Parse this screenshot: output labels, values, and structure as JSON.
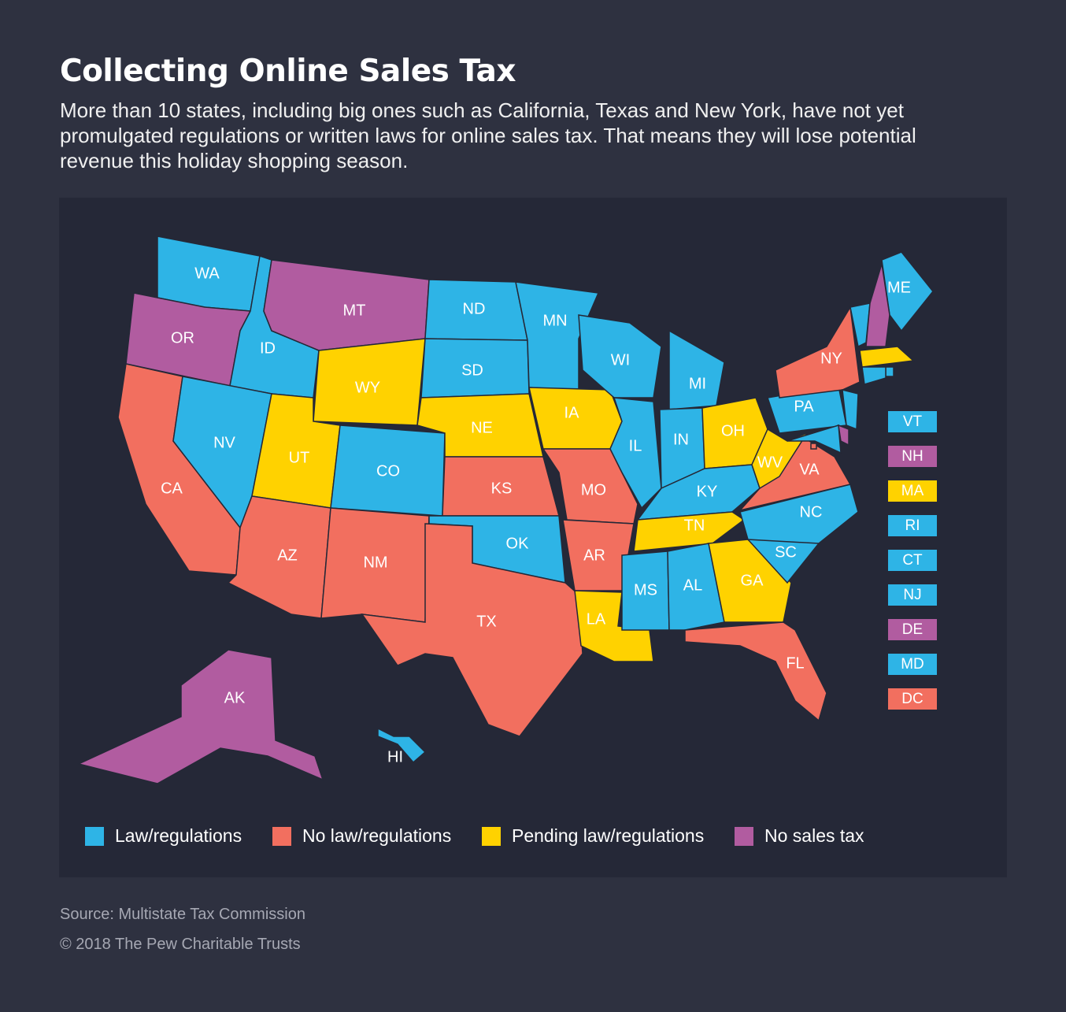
{
  "header": {
    "title": "Collecting Online Sales Tax",
    "subtitle": "More than 10 states, including big ones such as California, Texas and New York, have not yet promulgated regulations or written laws for online sales tax. That means they will lose potential revenue this holiday shopping season."
  },
  "legend": [
    {
      "label": "Law/regulations",
      "color": "#2eb4e6"
    },
    {
      "label": "No law/regulations",
      "color": "#f26f5f"
    },
    {
      "label": "Pending law/regulations",
      "color": "#ffd200"
    },
    {
      "label": "No sales tax",
      "color": "#b15ca0"
    }
  ],
  "states": [
    {
      "label": "WA",
      "color": "#2eb4e6"
    },
    {
      "label": "OR",
      "color": "#b15ca0"
    },
    {
      "label": "CA",
      "color": "#f26f5f"
    },
    {
      "label": "ID",
      "color": "#2eb4e6"
    },
    {
      "label": "NV",
      "color": "#2eb4e6"
    },
    {
      "label": "MT",
      "color": "#b15ca0"
    },
    {
      "label": "WY",
      "color": "#ffd200"
    },
    {
      "label": "UT",
      "color": "#ffd200"
    },
    {
      "label": "CO",
      "color": "#2eb4e6"
    },
    {
      "label": "AZ",
      "color": "#f26f5f"
    },
    {
      "label": "NM",
      "color": "#f26f5f"
    },
    {
      "label": "ND",
      "color": "#2eb4e6"
    },
    {
      "label": "SD",
      "color": "#2eb4e6"
    },
    {
      "label": "NE",
      "color": "#ffd200"
    },
    {
      "label": "KS",
      "color": "#f26f5f"
    },
    {
      "label": "OK",
      "color": "#2eb4e6"
    },
    {
      "label": "TX",
      "color": "#f26f5f"
    },
    {
      "label": "MN",
      "color": "#2eb4e6"
    },
    {
      "label": "IA",
      "color": "#ffd200"
    },
    {
      "label": "MO",
      "color": "#f26f5f"
    },
    {
      "label": "AR",
      "color": "#f26f5f"
    },
    {
      "label": "LA",
      "color": "#ffd200"
    },
    {
      "label": "WI",
      "color": "#2eb4e6"
    },
    {
      "label": "IL",
      "color": "#2eb4e6"
    },
    {
      "label": "MI",
      "color": "#2eb4e6"
    },
    {
      "label": "IN",
      "color": "#2eb4e6"
    },
    {
      "label": "OH",
      "color": "#ffd200"
    },
    {
      "label": "KY",
      "color": "#2eb4e6"
    },
    {
      "label": "TN",
      "color": "#ffd200"
    },
    {
      "label": "MS",
      "color": "#2eb4e6"
    },
    {
      "label": "AL",
      "color": "#2eb4e6"
    },
    {
      "label": "GA",
      "color": "#ffd200"
    },
    {
      "label": "FL",
      "color": "#f26f5f"
    },
    {
      "label": "SC",
      "color": "#2eb4e6"
    },
    {
      "label": "NC",
      "color": "#2eb4e6"
    },
    {
      "label": "VA",
      "color": "#f26f5f"
    },
    {
      "label": "WV",
      "color": "#ffd200"
    },
    {
      "label": "PA",
      "color": "#2eb4e6"
    },
    {
      "label": "NY",
      "color": "#f26f5f"
    },
    {
      "label": "ME",
      "color": "#2eb4e6"
    },
    {
      "label": "AK",
      "color": "#b15ca0"
    },
    {
      "label": "HI",
      "color": "#2eb4e6"
    },
    {
      "label": "VT",
      "color": "#2eb4e6"
    },
    {
      "label": "NH",
      "color": "#b15ca0"
    },
    {
      "label": "MA",
      "color": "#ffd200"
    },
    {
      "label": "RI",
      "color": "#2eb4e6"
    },
    {
      "label": "CT",
      "color": "#2eb4e6"
    },
    {
      "label": "NJ",
      "color": "#2eb4e6"
    },
    {
      "label": "DE",
      "color": "#b15ca0"
    },
    {
      "label": "MD",
      "color": "#2eb4e6"
    },
    {
      "label": "DC",
      "color": "#f26f5f"
    }
  ],
  "source": "Source: Multistate Tax Commission",
  "copyright": "© 2018 The Pew Charitable Trusts"
}
